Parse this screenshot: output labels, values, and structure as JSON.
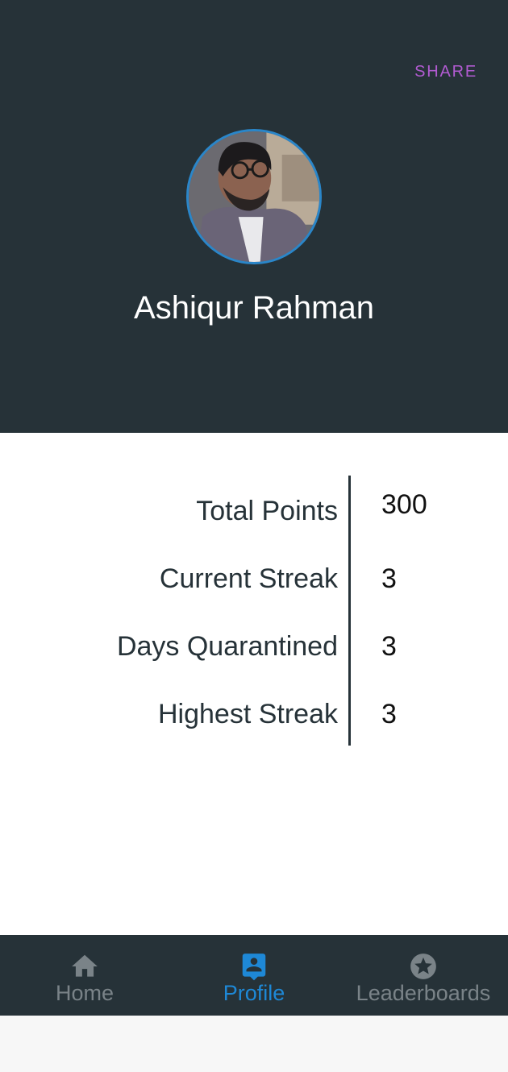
{
  "header": {
    "share_label": "SHARE",
    "user_name": "Ashiqur Rahman"
  },
  "stats": [
    {
      "label": "Total Points",
      "value": "300"
    },
    {
      "label": "Current Streak",
      "value": "3"
    },
    {
      "label": "Days Quarantined",
      "value": "3"
    },
    {
      "label": "Highest Streak",
      "value": "3"
    }
  ],
  "bottom_nav": {
    "items": [
      {
        "label": "Home",
        "icon": "home-icon",
        "active": false
      },
      {
        "label": "Profile",
        "icon": "profile-icon",
        "active": true
      },
      {
        "label": "Leaderboards",
        "icon": "star-icon",
        "active": false
      }
    ]
  },
  "colors": {
    "header_bg": "#263238",
    "accent_active": "#1e88d6",
    "share": "#b15bd1",
    "inactive": "#7a8388"
  }
}
